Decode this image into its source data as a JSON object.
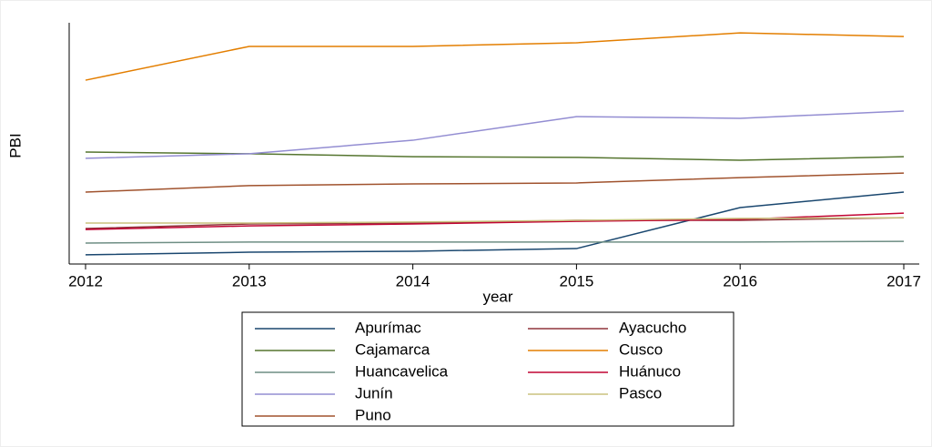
{
  "chart_data": {
    "type": "line",
    "x_label": "year",
    "y_label": "PBI",
    "x": [
      2012,
      2013,
      2014,
      2015,
      2016,
      2017
    ],
    "xlim": [
      2012,
      2017
    ],
    "xticks": [
      2012,
      2013,
      2014,
      2015,
      2016,
      2017
    ],
    "ylim": [
      0,
      100
    ],
    "legend": "bottom",
    "series": [
      {
        "name": "Apurímac",
        "color": "#1a476f",
        "values": [
          3.8,
          4.9,
          5.3,
          6.4,
          23.4,
          29.8
        ]
      },
      {
        "name": "Ayacucho",
        "color": "#90353b",
        "values": [
          14.7,
          16.6,
          17.0,
          18.1,
          18.1,
          19.2
        ]
      },
      {
        "name": "Cajamarca",
        "color": "#55752f",
        "values": [
          46.4,
          45.7,
          44.5,
          44.2,
          43.0,
          44.5
        ]
      },
      {
        "name": "Cusco",
        "color": "#e37e00",
        "values": [
          76.2,
          90.2,
          90.2,
          91.7,
          95.8,
          94.3
        ]
      },
      {
        "name": "Huancavelica",
        "color": "#6e8e84",
        "values": [
          8.7,
          9.1,
          9.1,
          9.1,
          9.1,
          9.4
        ]
      },
      {
        "name": "Huánuco",
        "color": "#c10534",
        "values": [
          14.3,
          15.8,
          16.6,
          17.7,
          18.5,
          21.1
        ]
      },
      {
        "name": "Junín",
        "color": "#938dd2",
        "values": [
          43.8,
          45.7,
          51.3,
          61.1,
          60.4,
          63.4
        ]
      },
      {
        "name": "Pasco",
        "color": "#cac27e",
        "values": [
          17.0,
          17.0,
          17.4,
          18.1,
          18.9,
          19.2
        ]
      },
      {
        "name": "Puno",
        "color": "#a0522d",
        "values": [
          29.8,
          32.5,
          33.2,
          33.6,
          35.8,
          37.7
        ]
      }
    ]
  }
}
